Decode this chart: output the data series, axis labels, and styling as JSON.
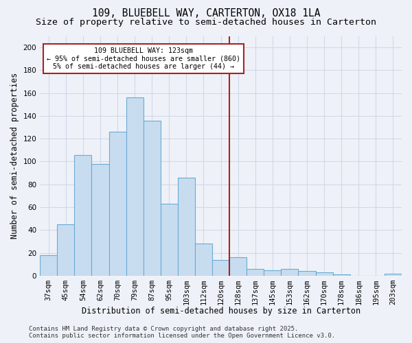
{
  "title_line1": "109, BLUEBELL WAY, CARTERTON, OX18 1LA",
  "title_line2": "Size of property relative to semi-detached houses in Carterton",
  "xlabel": "Distribution of semi-detached houses by size in Carterton",
  "ylabel": "Number of semi-detached properties",
  "categories": [
    "37sqm",
    "45sqm",
    "54sqm",
    "62sqm",
    "70sqm",
    "79sqm",
    "87sqm",
    "95sqm",
    "103sqm",
    "112sqm",
    "120sqm",
    "128sqm",
    "137sqm",
    "145sqm",
    "153sqm",
    "162sqm",
    "170sqm",
    "178sqm",
    "186sqm",
    "195sqm",
    "203sqm"
  ],
  "values": [
    18,
    45,
    106,
    98,
    126,
    156,
    136,
    63,
    86,
    28,
    14,
    16,
    6,
    5,
    6,
    4,
    3,
    1,
    0,
    0,
    2
  ],
  "bar_color": "#c8dcf0",
  "bar_edge_color": "#6aaad4",
  "vline_x": 10.5,
  "vline_color": "#aa2222",
  "annotation_title": "109 BLUEBELL WAY: 123sqm",
  "annotation_line1": "← 95% of semi-detached houses are smaller (860)",
  "annotation_line2": "5% of semi-detached houses are larger (44) →",
  "annotation_box_color": "#aa2222",
  "ylim": [
    0,
    210
  ],
  "yticks": [
    0,
    20,
    40,
    60,
    80,
    100,
    120,
    140,
    160,
    180,
    200
  ],
  "footer_line1": "Contains HM Land Registry data © Crown copyright and database right 2025.",
  "footer_line2": "Contains public sector information licensed under the Open Government Licence v3.0.",
  "bg_color": "#eef2f8",
  "grid_color": "#d0d8e8",
  "title_fontsize": 10.5,
  "subtitle_fontsize": 9.5,
  "axis_label_fontsize": 8.5,
  "tick_fontsize": 7.5,
  "footer_fontsize": 6.5
}
